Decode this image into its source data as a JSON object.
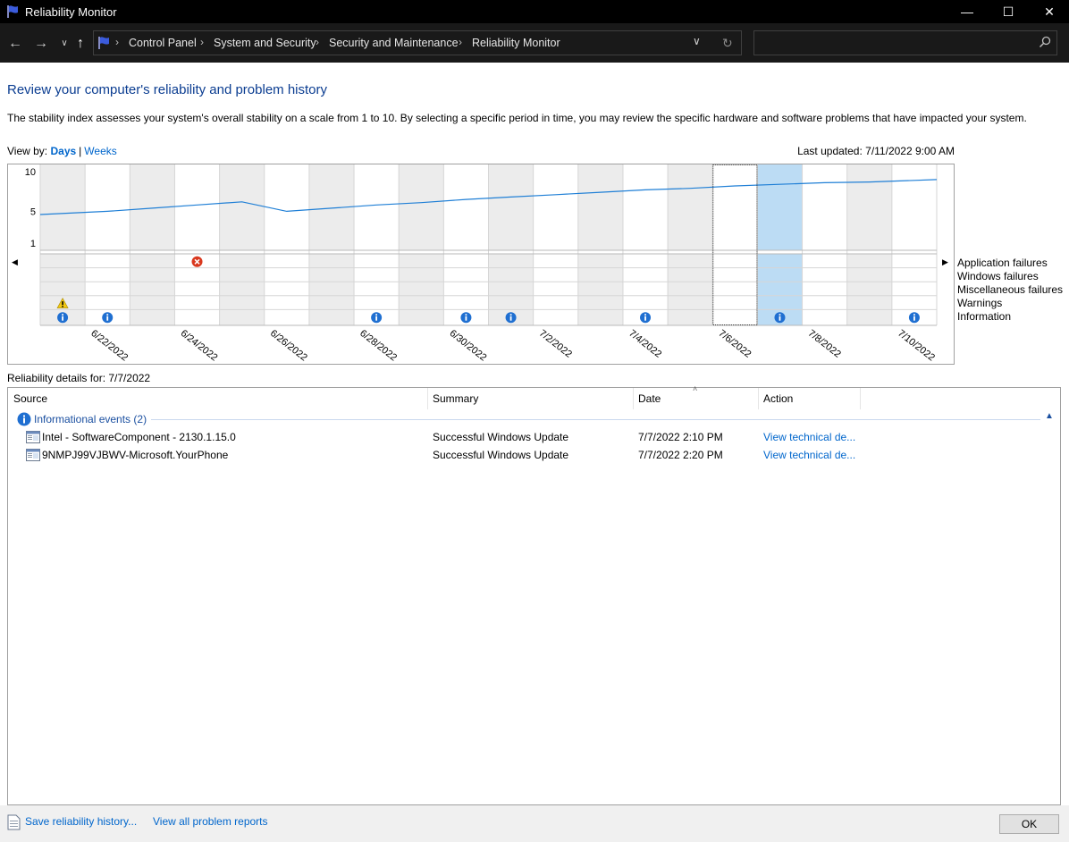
{
  "window": {
    "title": "Reliability Monitor"
  },
  "address": {
    "breadcrumbs": [
      "Control Panel",
      "System and Security",
      "Security and Maintenance",
      "Reliability Monitor"
    ],
    "search_placeholder": ""
  },
  "content": {
    "title": "Review your computer's reliability and problem history",
    "description": "The stability index assesses your system's overall stability on a scale from 1 to 10. By selecting a specific period in time, you may review the specific hardware and software problems that have impacted your system.",
    "view_by_label": "View by:",
    "view_days": "Days",
    "view_weeks": "Weeks",
    "last_updated": "Last updated: 7/11/2022 9:00 AM"
  },
  "chart_data": {
    "type": "line",
    "y_ticks": [
      "10",
      "5",
      "1"
    ],
    "ylim": [
      1,
      10
    ],
    "x_labels": [
      "6/22/2022",
      "6/24/2022",
      "6/26/2022",
      "6/28/2022",
      "6/30/2022",
      "7/2/2022",
      "7/4/2022",
      "7/6/2022",
      "7/8/2022",
      "7/10/2022"
    ],
    "days": [
      "6/21/2022",
      "6/22/2022",
      "6/23/2022",
      "6/24/2022",
      "6/25/2022",
      "6/26/2022",
      "6/27/2022",
      "6/28/2022",
      "6/29/2022",
      "6/30/2022",
      "7/1/2022",
      "7/2/2022",
      "7/3/2022",
      "7/4/2022",
      "7/5/2022",
      "7/6/2022",
      "7/7/2022",
      "7/8/2022",
      "7/9/2022",
      "7/10/2022"
    ],
    "stability_index": [
      4.6,
      5.0,
      5.4,
      5.8,
      6.2,
      5.0,
      5.4,
      5.8,
      6.1,
      6.5,
      6.8,
      7.1,
      7.4,
      7.7,
      7.9,
      8.2,
      8.4,
      8.6,
      8.7,
      8.9
    ],
    "selected_day": "7/7/2022",
    "focused_day": "7/6/2022",
    "rows": [
      "Application failures",
      "Windows failures",
      "Miscellaneous failures",
      "Warnings",
      "Information"
    ],
    "events": [
      {
        "day": "6/24/2022",
        "row": "Application failures",
        "kind": "error"
      },
      {
        "day": "6/21/2022",
        "row": "Warnings",
        "kind": "warning"
      },
      {
        "day": "6/21/2022",
        "row": "Information",
        "kind": "info"
      },
      {
        "day": "6/22/2022",
        "row": "Information",
        "kind": "info"
      },
      {
        "day": "6/28/2022",
        "row": "Information",
        "kind": "info"
      },
      {
        "day": "6/30/2022",
        "row": "Information",
        "kind": "info"
      },
      {
        "day": "7/1/2022",
        "row": "Information",
        "kind": "info"
      },
      {
        "day": "7/4/2022",
        "row": "Information",
        "kind": "info"
      },
      {
        "day": "7/7/2022",
        "row": "Information",
        "kind": "info"
      },
      {
        "day": "7/10/2022",
        "row": "Information",
        "kind": "info"
      }
    ]
  },
  "details": {
    "label": "Reliability details for: 7/7/2022",
    "columns": [
      "Source",
      "Summary",
      "Date",
      "Action"
    ],
    "group_label": "Informational events (2)",
    "rows": [
      {
        "source": "Intel - SoftwareComponent - 2130.1.15.0",
        "summary": "Successful Windows Update",
        "date": "7/7/2022 2:10 PM",
        "action": "View technical de..."
      },
      {
        "source": "9NMPJ99VJBWV-Microsoft.YourPhone",
        "summary": "Successful Windows Update",
        "date": "7/7/2022 2:20 PM",
        "action": "View technical de..."
      }
    ]
  },
  "footer": {
    "save_link": "Save reliability history...",
    "reports_link": "View all problem reports",
    "ok_label": "OK"
  },
  "colors": {
    "line": "#1f7fd6",
    "selected": "#bcdcf4",
    "shade": "#ececec",
    "link": "#0066cc",
    "title": "#0b3d91"
  }
}
